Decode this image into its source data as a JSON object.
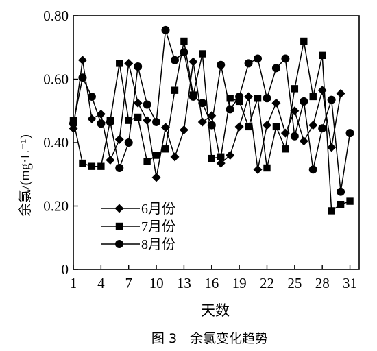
{
  "chart_data": {
    "type": "line",
    "title": "",
    "caption": "图 3　余氯变化趋势",
    "xlabel": "天数",
    "ylabel": "余氯/(mg·L⁻¹)",
    "xlim": [
      1,
      32
    ],
    "ylim": [
      0,
      0.8
    ],
    "xticks": [
      1,
      4,
      7,
      10,
      13,
      16,
      19,
      22,
      25,
      28,
      31
    ],
    "yticks": [
      0,
      0.2,
      0.4,
      0.6,
      0.8
    ],
    "ytick_labels": [
      "0",
      "0.20",
      "0.40",
      "0.60",
      "0.80"
    ],
    "grid": false,
    "legend_position": "bottom-left",
    "series": [
      {
        "name": "6月份",
        "marker": "diamond",
        "x": [
          1,
          2,
          3,
          4,
          5,
          6,
          7,
          8,
          9,
          10,
          11,
          12,
          13,
          14,
          15,
          16,
          17,
          18,
          19,
          20,
          21,
          22,
          23,
          24,
          25,
          26,
          27,
          28,
          29,
          30,
          31
        ],
        "values": [
          0.445,
          0.66,
          0.475,
          0.49,
          0.345,
          0.41,
          0.65,
          0.525,
          0.47,
          0.29,
          0.448,
          0.355,
          0.44,
          0.655,
          0.465,
          0.485,
          0.335,
          0.36,
          0.45,
          0.545,
          0.315,
          0.455,
          0.525,
          0.43,
          0.5,
          0.405,
          0.455,
          0.565,
          0.385,
          0.555,
          null
        ]
      },
      {
        "name": "7月份",
        "marker": "square",
        "x": [
          1,
          2,
          3,
          4,
          5,
          6,
          7,
          8,
          9,
          10,
          11,
          12,
          13,
          14,
          15,
          16,
          17,
          18,
          19,
          20,
          21,
          22,
          23,
          24,
          25,
          26,
          27,
          28,
          29,
          30,
          31
        ],
        "values": [
          0.47,
          0.335,
          0.325,
          0.325,
          0.47,
          0.65,
          0.47,
          0.48,
          0.34,
          0.36,
          0.38,
          0.565,
          0.72,
          0.55,
          0.68,
          0.35,
          0.355,
          0.54,
          0.53,
          0.45,
          0.54,
          0.32,
          0.45,
          0.38,
          0.57,
          0.72,
          0.545,
          0.675,
          0.185,
          0.205,
          0.215
        ]
      },
      {
        "name": "8月份",
        "marker": "circle",
        "x": [
          1,
          2,
          3,
          4,
          5,
          6,
          7,
          8,
          9,
          10,
          11,
          12,
          13,
          14,
          15,
          16,
          17,
          18,
          19,
          20,
          21,
          22,
          23,
          24,
          25,
          26,
          27,
          28,
          29,
          30,
          31
        ],
        "values": [
          0.46,
          0.605,
          0.545,
          0.46,
          0.465,
          0.32,
          0.4,
          0.64,
          0.52,
          0.465,
          0.755,
          0.66,
          0.685,
          0.545,
          0.525,
          0.455,
          0.645,
          0.505,
          0.545,
          0.65,
          0.665,
          0.54,
          0.635,
          0.665,
          0.42,
          0.53,
          0.315,
          0.445,
          0.535,
          0.245,
          0.43
        ]
      }
    ]
  }
}
